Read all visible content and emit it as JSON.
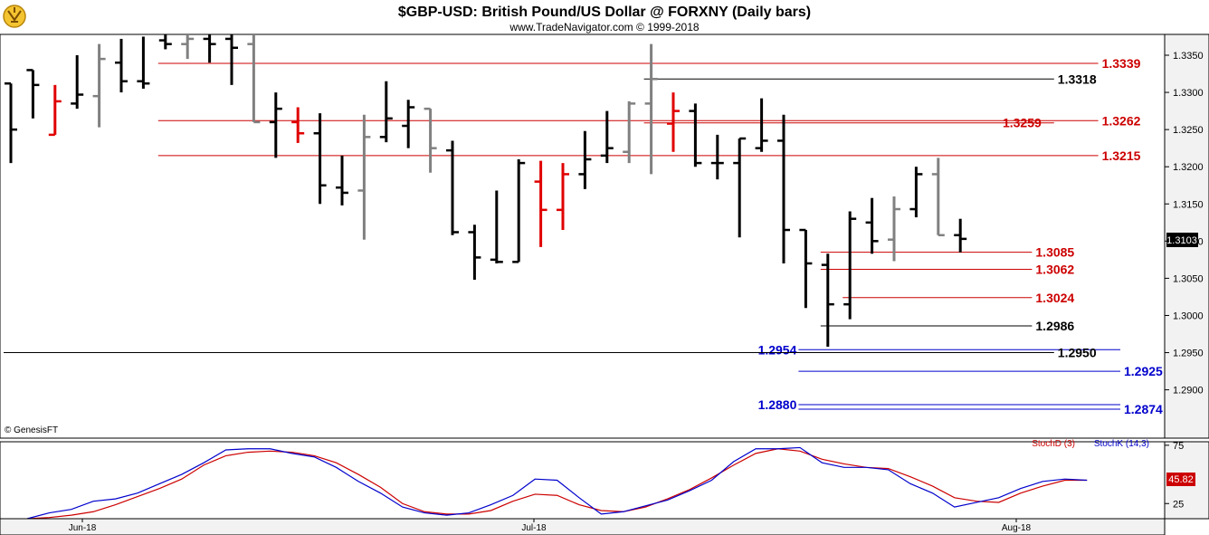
{
  "header": {
    "title": "$GBP-USD:  British Pound/US Dollar @ FORXNY  (Daily bars)",
    "subtitle": "www.TradeNavigator.com © 1999-2018"
  },
  "watermark": "© GenesisFT",
  "colors": {
    "black_bar": "#000000",
    "red_bar": "#e00000",
    "gray_bar": "#808080",
    "red_level": "#cc0000",
    "blue_level": "#0000cc",
    "stoch_d": "#cc0000",
    "stoch_k": "#0000cc",
    "price_badge": "#000000",
    "stoch_badge": "#cc0000"
  },
  "chart_data": [
    {
      "type": "ohlc",
      "price_axis": {
        "ylim": [
          1.2835,
          1.3378
        ],
        "ticks": [
          "1.3350",
          "1.3300",
          "1.3250",
          "1.3200",
          "1.3150",
          "1.3100",
          "1.3050",
          "1.3000",
          "1.2950",
          "1.2900"
        ]
      },
      "time_axis": {
        "ticks": [
          "Jun-18",
          "Jul-18",
          "Aug-18"
        ]
      },
      "last_price": "1.3103",
      "bars": [
        {
          "o": 1.3312,
          "h": 1.3312,
          "l": 1.3205,
          "c": 1.325,
          "color": "black"
        },
        {
          "o": 1.333,
          "h": 1.333,
          "l": 1.3265,
          "c": 1.331,
          "color": "black"
        },
        {
          "o": 1.3243,
          "h": 1.331,
          "l": 1.3243,
          "c": 1.3288,
          "color": "red"
        },
        {
          "o": 1.3285,
          "h": 1.335,
          "l": 1.3278,
          "c": 1.3297,
          "color": "black"
        },
        {
          "o": 1.3295,
          "h": 1.3365,
          "l": 1.3253,
          "c": 1.3345,
          "color": "gray"
        },
        {
          "o": 1.334,
          "h": 1.3372,
          "l": 1.33,
          "c": 1.3315,
          "color": "black"
        },
        {
          "o": 1.3315,
          "h": 1.3375,
          "l": 1.3305,
          "c": 1.3312,
          "color": "black"
        },
        {
          "o": 1.337,
          "h": 1.3378,
          "l": 1.3358,
          "c": 1.3365,
          "color": "black"
        },
        {
          "o": 1.3365,
          "h": 1.3378,
          "l": 1.3345,
          "c": 1.3372,
          "color": "gray"
        },
        {
          "o": 1.3372,
          "h": 1.3378,
          "l": 1.334,
          "c": 1.3365,
          "color": "black"
        },
        {
          "o": 1.3372,
          "h": 1.3378,
          "l": 1.331,
          "c": 1.336,
          "color": "black"
        },
        {
          "o": 1.3365,
          "h": 1.3378,
          "l": 1.326,
          "c": 1.326,
          "color": "gray"
        },
        {
          "o": 1.326,
          "h": 1.33,
          "l": 1.3212,
          "c": 1.3278,
          "color": "black"
        },
        {
          "o": 1.326,
          "h": 1.328,
          "l": 1.3232,
          "c": 1.3245,
          "color": "red"
        },
        {
          "o": 1.3245,
          "h": 1.3272,
          "l": 1.315,
          "c": 1.3175,
          "color": "black"
        },
        {
          "o": 1.3172,
          "h": 1.3215,
          "l": 1.3148,
          "c": 1.3165,
          "color": "black"
        },
        {
          "o": 1.3168,
          "h": 1.327,
          "l": 1.3102,
          "c": 1.324,
          "color": "gray"
        },
        {
          "o": 1.324,
          "h": 1.3315,
          "l": 1.3233,
          "c": 1.3265,
          "color": "black"
        },
        {
          "o": 1.3255,
          "h": 1.329,
          "l": 1.3225,
          "c": 1.328,
          "color": "black"
        },
        {
          "o": 1.3278,
          "h": 1.3278,
          "l": 1.3192,
          "c": 1.3225,
          "color": "gray"
        },
        {
          "o": 1.3222,
          "h": 1.3235,
          "l": 1.3108,
          "c": 1.3112,
          "color": "black"
        },
        {
          "o": 1.3112,
          "h": 1.3122,
          "l": 1.3048,
          "c": 1.3078,
          "color": "black"
        },
        {
          "o": 1.3075,
          "h": 1.3168,
          "l": 1.307,
          "c": 1.3072,
          "color": "black"
        },
        {
          "o": 1.3072,
          "h": 1.321,
          "l": 1.3072,
          "c": 1.3205,
          "color": "black"
        },
        {
          "o": 1.318,
          "h": 1.3208,
          "l": 1.3092,
          "c": 1.3142,
          "color": "red"
        },
        {
          "o": 1.3142,
          "h": 1.3205,
          "l": 1.3115,
          "c": 1.319,
          "color": "red"
        },
        {
          "o": 1.319,
          "h": 1.3248,
          "l": 1.317,
          "c": 1.321,
          "color": "black"
        },
        {
          "o": 1.3215,
          "h": 1.3275,
          "l": 1.3205,
          "c": 1.3225,
          "color": "black"
        },
        {
          "o": 1.322,
          "h": 1.3288,
          "l": 1.3205,
          "c": 1.3285,
          "color": "gray"
        },
        {
          "o": 1.3285,
          "h": 1.3365,
          "l": 1.319,
          "c": 1.3318,
          "color": "gray"
        },
        {
          "o": 1.3258,
          "h": 1.33,
          "l": 1.322,
          "c": 1.3275,
          "color": "red"
        },
        {
          "o": 1.3275,
          "h": 1.3285,
          "l": 1.32,
          "c": 1.3205,
          "color": "black"
        },
        {
          "o": 1.3205,
          "h": 1.3243,
          "l": 1.3183,
          "c": 1.3205,
          "color": "black"
        },
        {
          "o": 1.3205,
          "h": 1.3238,
          "l": 1.3105,
          "c": 1.3238,
          "color": "black"
        },
        {
          "o": 1.3225,
          "h": 1.3292,
          "l": 1.322,
          "c": 1.3235,
          "color": "black"
        },
        {
          "o": 1.3235,
          "h": 1.327,
          "l": 1.307,
          "c": 1.3115,
          "color": "black"
        },
        {
          "o": 1.3115,
          "h": 1.3115,
          "l": 1.301,
          "c": 1.307,
          "color": "black"
        },
        {
          "o": 1.3068,
          "h": 1.3083,
          "l": 1.2958,
          "c": 1.3015,
          "color": "black"
        },
        {
          "o": 1.3015,
          "h": 1.314,
          "l": 1.2995,
          "c": 1.313,
          "color": "black"
        },
        {
          "o": 1.3125,
          "h": 1.3158,
          "l": 1.3083,
          "c": 1.31,
          "color": "black"
        },
        {
          "o": 1.3102,
          "h": 1.316,
          "l": 1.3073,
          "c": 1.3143,
          "color": "gray"
        },
        {
          "o": 1.3143,
          "h": 1.32,
          "l": 1.3132,
          "c": 1.319,
          "color": "black"
        },
        {
          "o": 1.319,
          "h": 1.3212,
          "l": 1.3108,
          "c": 1.3108,
          "color": "gray"
        },
        {
          "o": 1.3108,
          "h": 1.313,
          "l": 1.3085,
          "c": 1.3103,
          "color": "black"
        }
      ],
      "levels": [
        {
          "value": 1.3339,
          "label": "1.3339",
          "color": "red",
          "from": 7,
          "to": 49
        },
        {
          "value": 1.3318,
          "label": "1.3318",
          "color": "black",
          "from": 29,
          "to": 47
        },
        {
          "value": 1.3262,
          "label": "1.3262",
          "color": "red",
          "from": 7,
          "to": 49
        },
        {
          "value": 1.3259,
          "label": "1.3259",
          "color": "red",
          "from": 29,
          "to": 47
        },
        {
          "value": 1.3215,
          "label": "1.3215",
          "color": "red",
          "from": 7,
          "to": 49
        },
        {
          "value": 1.3085,
          "label": "1.3085",
          "color": "red",
          "from": 37,
          "to": 46
        },
        {
          "value": 1.3062,
          "label": "1.3062",
          "color": "red",
          "from": 37,
          "to": 46
        },
        {
          "value": 1.3024,
          "label": "1.3024",
          "color": "red",
          "from": 38,
          "to": 46
        },
        {
          "value": 1.2986,
          "label": "1.2986",
          "color": "black",
          "from": 37,
          "to": 46
        },
        {
          "value": 1.2954,
          "label": "1.2954",
          "color": "blue",
          "from": 36,
          "to": 50
        },
        {
          "value": 1.295,
          "label": "1.2950",
          "color": "black",
          "from": 0,
          "to": 47
        },
        {
          "value": 1.2925,
          "label": "1.2925",
          "color": "blue",
          "from": 36,
          "to": 50
        },
        {
          "value": 1.288,
          "label": "1.2880",
          "color": "blue",
          "from": 36,
          "to": 50
        },
        {
          "value": 1.2874,
          "label": "1.2874",
          "color": "blue",
          "from": 36,
          "to": 50
        }
      ]
    },
    {
      "type": "line",
      "title": "",
      "series": [
        {
          "name": "StochD (3)",
          "color": "red",
          "values": [
            12,
            13,
            15,
            18,
            24,
            31,
            38,
            46,
            58,
            66,
            69,
            70,
            69,
            66,
            60,
            50,
            39,
            25,
            18,
            16,
            16,
            19,
            27,
            33,
            32,
            24,
            19,
            18,
            22,
            29,
            37,
            47,
            58,
            68,
            72,
            70,
            63,
            59,
            56,
            55,
            48,
            40,
            30,
            27,
            26,
            34,
            40,
            45,
            45
          ]
        },
        {
          "name": "StochK (14,3)",
          "color": "blue",
          "values": [
            12,
            17,
            20,
            27,
            29,
            34,
            42,
            50,
            60,
            71,
            72,
            72,
            68,
            65,
            56,
            44,
            34,
            22,
            17,
            15,
            17,
            24,
            32,
            46,
            45,
            30,
            16,
            18,
            23,
            28,
            36,
            45,
            61,
            72,
            72,
            73,
            60,
            56,
            56,
            54,
            42,
            34,
            22,
            26,
            30,
            38,
            44,
            46,
            45
          ]
        },
        {
          "name": "",
          "color": "",
          "values": []
        }
      ],
      "ylim": [
        12,
        78
      ],
      "ticks": [
        "75",
        "25"
      ],
      "last_value": "45.82",
      "legend": {
        "d_label": "StochD (3)",
        "k_label": "StochK (14,3)"
      }
    }
  ]
}
